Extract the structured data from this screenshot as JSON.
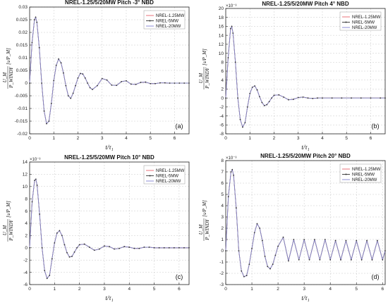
{
  "chart_data": [
    {
      "type": "line",
      "title": "NREL-1.25/5/20MW Pitch -3° NBD",
      "panel_label": "(a)",
      "xlabel": "t/τ₁",
      "ylabel": [
        "U_M",
        "P_WINDY",
        "[s/P_M]"
      ],
      "xlim": [
        0,
        6.6
      ],
      "ylim": [
        -0.02,
        0.03
      ],
      "x_ticks": [
        0,
        1,
        2,
        3,
        4,
        5,
        6
      ],
      "y_ticks": [
        -0.02,
        -0.015,
        -0.01,
        -0.005,
        0,
        0.005,
        0.01,
        0.015,
        0.02,
        0.025,
        0.03
      ],
      "y_tick_labels": [
        "-0.02",
        "-0.015",
        "-0.01",
        "-0.005",
        "0",
        "0.005",
        "0.01",
        "0.015",
        "0.02",
        "0.025",
        "0.03"
      ],
      "exponent_label": "",
      "grid": true,
      "legend_position": "top-right",
      "series": [
        {
          "name": "NREL-1.25MW",
          "color": "#e8707a"
        },
        {
          "name": "NREL-5MW",
          "color": "#444444"
        },
        {
          "name": "NREL-20MW",
          "color": "#8c8cd6"
        }
      ],
      "x": [
        0,
        0.1,
        0.2,
        0.25,
        0.3,
        0.4,
        0.5,
        0.6,
        0.7,
        0.8,
        0.9,
        1.0,
        1.1,
        1.2,
        1.3,
        1.4,
        1.5,
        1.6,
        1.7,
        1.8,
        1.9,
        2.0,
        2.1,
        2.2,
        2.3,
        2.4,
        2.5,
        2.6,
        2.8,
        3.0,
        3.2,
        3.4,
        3.6,
        3.8,
        4.0,
        4.2,
        4.4,
        4.6,
        4.8,
        5.0,
        5.2,
        5.4,
        5.6,
        5.8,
        6.0,
        6.2,
        6.4,
        6.6
      ],
      "y": [
        0,
        0.016,
        0.025,
        0.026,
        0.024,
        0.014,
        0.0,
        -0.011,
        -0.016,
        -0.015,
        -0.008,
        0.001,
        0.007,
        0.0095,
        0.008,
        0.004,
        -0.001,
        -0.005,
        -0.006,
        -0.004,
        -0.001,
        0.002,
        0.0038,
        0.0036,
        0.002,
        0.0,
        -0.0018,
        -0.0025,
        -0.001,
        0.0018,
        0.0012,
        -0.0008,
        -0.0009,
        0.0006,
        0.0009,
        -0.0004,
        -0.0005,
        0.0003,
        0.0004,
        -0.0002,
        -0.0002,
        0.0001,
        0.0001,
        0,
        0,
        0,
        0,
        0
      ]
    },
    {
      "type": "line",
      "title": "NREL-1.25/5/20MW Pitch 4° NBD",
      "panel_label": "(b)",
      "xlabel": "t/τ₁",
      "ylabel": [
        "U_M",
        "P_WINDY",
        "[s/P_M]"
      ],
      "xlim": [
        0,
        6.6
      ],
      "ylim": [
        -0.008,
        0.02
      ],
      "x_ticks": [
        0,
        1,
        2,
        3,
        4,
        5,
        6
      ],
      "y_ticks": [
        -0.008,
        -0.006,
        -0.004,
        -0.002,
        0,
        0.002,
        0.004,
        0.006,
        0.008,
        0.01,
        0.012,
        0.014,
        0.016,
        0.018,
        0.02
      ],
      "y_tick_labels": [
        "-8",
        "-6",
        "-4",
        "-2",
        "0",
        "2",
        "4",
        "6",
        "8",
        "10",
        "12",
        "14",
        "16",
        "18",
        "20"
      ],
      "exponent_label": "×10⁻³",
      "grid": true,
      "legend_position": "top-right",
      "series": [
        {
          "name": "NREL-1.25MW",
          "color": "#e8707a"
        },
        {
          "name": "NREL-5MW",
          "color": "#444444"
        },
        {
          "name": "NREL-20MW",
          "color": "#8c8cd6"
        }
      ],
      "x": [
        0,
        0.1,
        0.2,
        0.25,
        0.3,
        0.4,
        0.5,
        0.6,
        0.7,
        0.8,
        0.9,
        1.0,
        1.1,
        1.2,
        1.3,
        1.4,
        1.5,
        1.6,
        1.7,
        1.8,
        1.9,
        2.0,
        2.2,
        2.4,
        2.6,
        2.8,
        3.0,
        3.2,
        3.4,
        3.6,
        3.8,
        4.0,
        4.4,
        4.8,
        5.2,
        5.6,
        6.0,
        6.4,
        6.6
      ],
      "y": [
        0,
        0.009,
        0.0155,
        0.016,
        0.0145,
        0.008,
        0.0,
        -0.0048,
        -0.0065,
        -0.0055,
        -0.002,
        0.001,
        0.0024,
        0.0027,
        0.0018,
        0.0003,
        -0.001,
        -0.0017,
        -0.0015,
        -0.0008,
        0.0,
        0.0006,
        0.0007,
        0.0002,
        -0.0004,
        -0.0003,
        0.0001,
        0.0002,
        0.0,
        -0.0001,
        0,
        0,
        0,
        0,
        0,
        0,
        0,
        0,
        0
      ]
    },
    {
      "type": "line",
      "title": "NREL-1.25/5/20MW Pitch 10° NBD",
      "panel_label": "(c)",
      "xlabel": "t/τ₁",
      "ylabel": [
        "U_M",
        "P_WINDY",
        "[s/P_M]"
      ],
      "xlim": [
        0,
        6.4
      ],
      "ylim": [
        -0.006,
        0.014
      ],
      "x_ticks": [
        0,
        1,
        2,
        3,
        4,
        5,
        6
      ],
      "y_ticks": [
        -0.006,
        -0.004,
        -0.002,
        0,
        0.002,
        0.004,
        0.006,
        0.008,
        0.01,
        0.012,
        0.014
      ],
      "y_tick_labels": [
        "-6",
        "-4",
        "-2",
        "0",
        "2",
        "4",
        "6",
        "8",
        "10",
        "12",
        "14"
      ],
      "exponent_label": "×10⁻³",
      "grid": true,
      "legend_position": "top-right",
      "series": [
        {
          "name": "NREL-1.25MW",
          "color": "#e8707a"
        },
        {
          "name": "NREL-5MW",
          "color": "#444444"
        },
        {
          "name": "NREL-20MW",
          "color": "#8c8cd6"
        }
      ],
      "x": [
        0,
        0.1,
        0.2,
        0.25,
        0.3,
        0.4,
        0.5,
        0.6,
        0.7,
        0.8,
        0.9,
        1.0,
        1.1,
        1.2,
        1.3,
        1.4,
        1.5,
        1.6,
        1.7,
        1.8,
        1.9,
        2.0,
        2.2,
        2.4,
        2.6,
        2.8,
        3.0,
        3.2,
        3.4,
        3.6,
        3.8,
        4.0,
        4.2,
        4.4,
        4.6,
        4.8,
        5.0,
        5.2,
        5.4,
        5.6,
        5.8,
        6.0,
        6.2,
        6.4
      ],
      "y": [
        0,
        0.0075,
        0.011,
        0.0112,
        0.0102,
        0.0055,
        0.0,
        -0.0037,
        -0.005,
        -0.0045,
        -0.0018,
        0.0008,
        0.0024,
        0.0028,
        0.002,
        0.0005,
        -0.0008,
        -0.0015,
        -0.0014,
        -0.0007,
        0.0,
        0.0005,
        0.0006,
        0.0001,
        -0.0004,
        -0.0002,
        0.0003,
        0.0002,
        -0.0002,
        -0.0001,
        0.0002,
        0.0001,
        -0.0001,
        -0.0001,
        0.0001,
        0.0001,
        0,
        0,
        0,
        0,
        0,
        0,
        0,
        0
      ]
    },
    {
      "type": "line",
      "title": "NREL-1.25/5/20MW Pitch 20° NBD",
      "panel_label": "(d)",
      "xlabel": "t/τ₁",
      "ylabel": [
        "U_M",
        "P_WINDY",
        "[s/P_M]"
      ],
      "xlim": [
        0,
        6.1
      ],
      "ylim": [
        -0.003,
        0.008
      ],
      "x_ticks": [
        0,
        1,
        2,
        3,
        4,
        5,
        6
      ],
      "y_ticks": [
        -0.003,
        -0.002,
        -0.001,
        0,
        0.001,
        0.002,
        0.003,
        0.004,
        0.005,
        0.006,
        0.007,
        0.008
      ],
      "y_tick_labels": [
        "-3",
        "-2",
        "-1",
        "0",
        "1",
        "2",
        "3",
        "4",
        "5",
        "6",
        "7",
        "8"
      ],
      "exponent_label": "×10⁻³",
      "grid": true,
      "legend_position": "top-right",
      "series": [
        {
          "name": "NREL-1.25MW",
          "color": "#e8707a"
        },
        {
          "name": "NREL-5MW",
          "color": "#444444"
        },
        {
          "name": "NREL-20MW",
          "color": "#8c8cd6"
        }
      ],
      "x": [
        0,
        0.1,
        0.2,
        0.25,
        0.3,
        0.4,
        0.5,
        0.6,
        0.7,
        0.8,
        0.9,
        1.0,
        1.1,
        1.2,
        1.3,
        1.4,
        1.5,
        1.6,
        1.7,
        1.8,
        1.9,
        2.0,
        2.2,
        2.4,
        2.6,
        2.8,
        3.0,
        3.2,
        3.4,
        3.6,
        3.8,
        4.0,
        4.2,
        4.4,
        4.6,
        4.8,
        5.0,
        5.2,
        5.4,
        5.6,
        5.8,
        6.0,
        6.1
      ],
      "y": [
        0,
        0.0048,
        0.007,
        0.0072,
        0.0067,
        0.0038,
        0.0,
        -0.0018,
        -0.0023,
        -0.0022,
        -0.0012,
        0.0002,
        0.0016,
        0.0024,
        0.002,
        0.0009,
        -0.0005,
        -0.0014,
        -0.0016,
        -0.0012,
        -0.0004,
        0.0004,
        0.0012,
        -0.0009,
        0.001,
        -0.0008,
        0.001,
        -0.0008,
        0.001,
        -0.0008,
        0.001,
        -0.0008,
        0.0009,
        -0.0008,
        0.0009,
        -0.0008,
        0.0009,
        -0.0008,
        0.0009,
        -0.0008,
        0.0009,
        -0.0008,
        0.0
      ]
    }
  ]
}
